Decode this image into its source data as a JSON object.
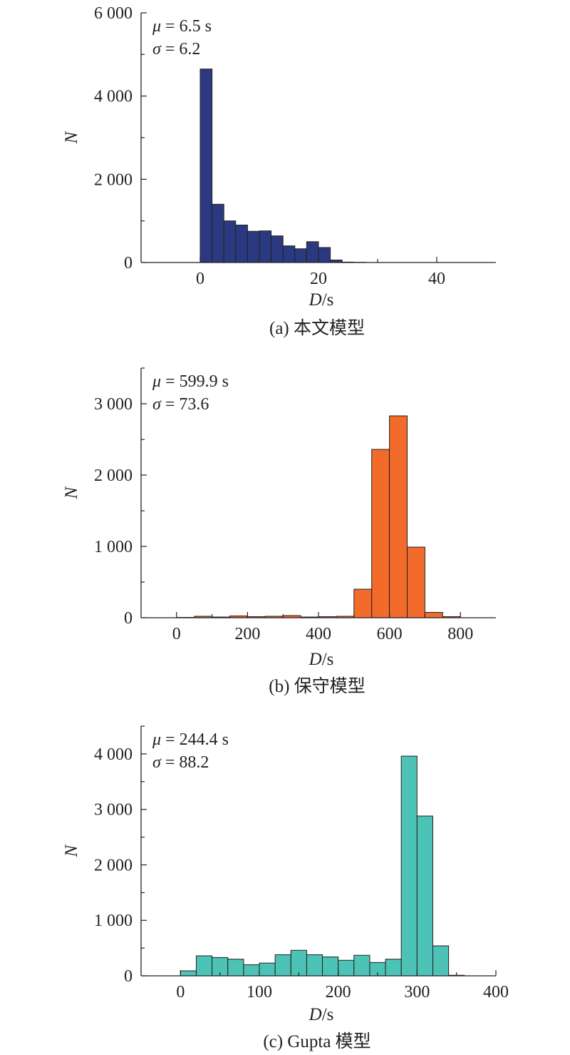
{
  "chart_data": [
    {
      "type": "bar",
      "panel": "a",
      "caption": "(a) 本文模型",
      "xlabel": "D",
      "xunit": "/s",
      "ylabel": "N",
      "xlim": [
        -10,
        50
      ],
      "ylim": [
        0,
        6000
      ],
      "xticks": [
        0,
        20,
        40
      ],
      "xtick_labels": [
        "0",
        "20",
        "40"
      ],
      "yticks": [
        0,
        2000,
        4000,
        6000
      ],
      "ytick_labels": [
        "0",
        "2 000",
        "4 000",
        "6 000"
      ],
      "y_minor_step": 1000,
      "bar_color": "#2b3a80",
      "stats": {
        "mu": "μ",
        "mu_value": " = 6.5 s",
        "sigma": "σ",
        "sigma_value": " = 6.2"
      },
      "bin_start": 0,
      "bin_width": 2,
      "values": [
        4650,
        1400,
        1000,
        900,
        750,
        760,
        640,
        400,
        330,
        500,
        360,
        60,
        10,
        5,
        0
      ]
    },
    {
      "type": "bar",
      "panel": "b",
      "caption": "(b) 保守模型",
      "xlabel": "D",
      "xunit": "/s",
      "ylabel": "N",
      "xlim": [
        -100,
        900
      ],
      "ylim": [
        0,
        3500
      ],
      "xticks": [
        0,
        200,
        400,
        600,
        800
      ],
      "xtick_labels": [
        "0",
        "200",
        "400",
        "600",
        "800"
      ],
      "yticks": [
        0,
        1000,
        2000,
        3000
      ],
      "ytick_labels": [
        "0",
        "1 000",
        "2 000",
        "3 000"
      ],
      "y_minor_step": 500,
      "bar_color": "#f26b2b",
      "stats": {
        "mu": "μ",
        "mu_value": " = 599.9 s",
        "sigma": "σ",
        "sigma_value": " = 73.6"
      },
      "bin_start": 0,
      "bin_width": 50,
      "values": [
        5,
        20,
        10,
        25,
        15,
        20,
        30,
        10,
        15,
        20,
        400,
        2360,
        2830,
        990,
        75,
        15
      ]
    },
    {
      "type": "bar",
      "panel": "c",
      "caption": "(c) Gupta 模型",
      "xlabel": "D",
      "xunit": "/s",
      "ylabel": "N",
      "xlim": [
        -50,
        400
      ],
      "ylim": [
        0,
        4500
      ],
      "xticks": [
        0,
        100,
        200,
        300,
        400
      ],
      "xtick_labels": [
        "0",
        "100",
        "200",
        "300",
        "400"
      ],
      "yticks": [
        0,
        1000,
        2000,
        3000,
        4000
      ],
      "ytick_labels": [
        "0",
        "1 000",
        "2 000",
        "3 000",
        "4 000"
      ],
      "y_minor_step": 500,
      "bar_color": "#4cc3b6",
      "stats": {
        "mu": "μ",
        "mu_value": " = 244.4 s",
        "sigma": "σ",
        "sigma_value": " = 88.2"
      },
      "bin_start": 0,
      "bin_width": 20,
      "values": [
        90,
        360,
        330,
        300,
        200,
        230,
        380,
        460,
        380,
        340,
        280,
        370,
        240,
        300,
        3960,
        2880,
        540,
        10
      ]
    }
  ]
}
